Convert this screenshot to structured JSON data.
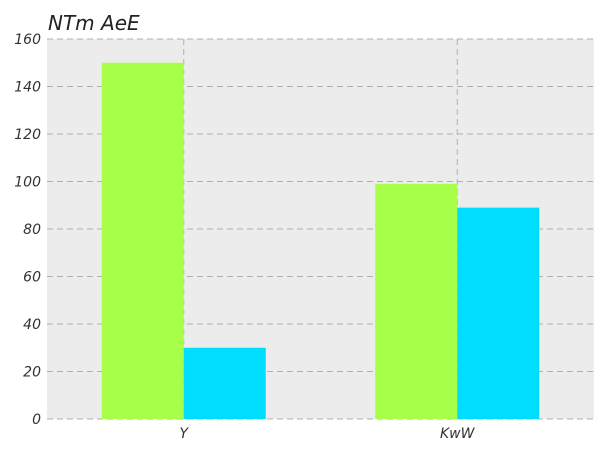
{
  "chart_data": {
    "type": "bar",
    "title": "NTm AeE",
    "xlabel": "",
    "ylabel": "",
    "categories": [
      "Y",
      "KwW"
    ],
    "series": [
      {
        "values": [
          150,
          99
        ],
        "color": "#a8ff4a"
      },
      {
        "values": [
          30,
          89
        ],
        "color": "#00ddff"
      }
    ],
    "ylim": [
      0,
      160
    ],
    "yticks": [
      0,
      20,
      40,
      60,
      80,
      100,
      120,
      140,
      160
    ],
    "grid": true,
    "legend": "none",
    "background_color": "#ececec",
    "grid_color": "#b0b0b0"
  }
}
